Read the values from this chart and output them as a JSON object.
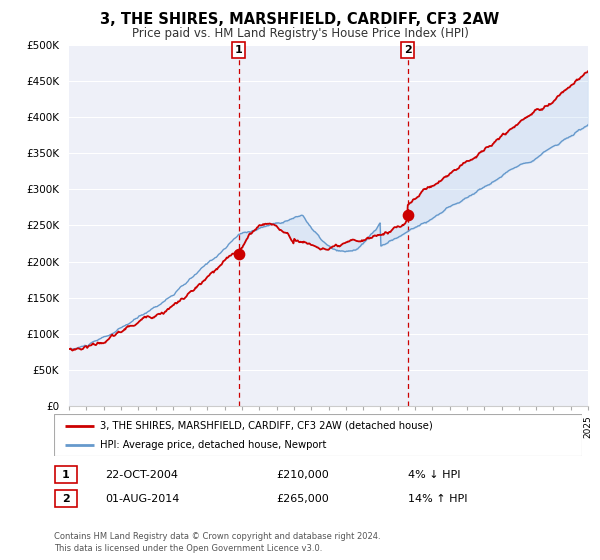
{
  "title": "3, THE SHIRES, MARSHFIELD, CARDIFF, CF3 2AW",
  "subtitle": "Price paid vs. HM Land Registry's House Price Index (HPI)",
  "legend_label_red": "3, THE SHIRES, MARSHFIELD, CARDIFF, CF3 2AW (detached house)",
  "legend_label_blue": "HPI: Average price, detached house, Newport",
  "annotation1_date": "22-OCT-2004",
  "annotation1_price": "£210,000",
  "annotation1_hpi": "4% ↓ HPI",
  "annotation2_date": "01-AUG-2014",
  "annotation2_price": "£265,000",
  "annotation2_hpi": "14% ↑ HPI",
  "footer": "Contains HM Land Registry data © Crown copyright and database right 2024.\nThis data is licensed under the Open Government Licence v3.0.",
  "red_color": "#cc0000",
  "blue_color": "#6699cc",
  "plot_bg_color": "#eef0f8",
  "vline_color": "#cc0000",
  "grid_color": "#ffffff",
  "ytick_labels": [
    "£0",
    "£50K",
    "£100K",
    "£150K",
    "£200K",
    "£250K",
    "£300K",
    "£350K",
    "£400K",
    "£450K",
    "£500K"
  ],
  "yticks": [
    0,
    50000,
    100000,
    150000,
    200000,
    250000,
    300000,
    350000,
    400000,
    450000,
    500000
  ],
  "ylim": [
    0,
    500000
  ],
  "xstart_year": 1995,
  "xend_year": 2025,
  "sale1_year": 2004.81,
  "sale2_year": 2014.58,
  "sale1_value": 210000,
  "sale2_value": 265000
}
